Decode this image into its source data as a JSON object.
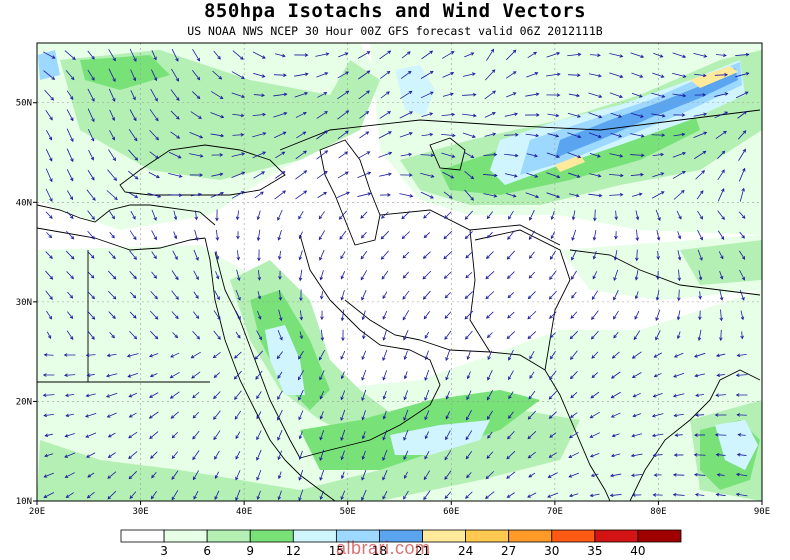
{
  "map": {
    "title": "850hpa Isotachs and Wind Vectors",
    "subtitle": "US NOAA NWS NCEP 30 Hour 00Z GFS forecast valid 06Z 2012111B",
    "lon_range": [
      20,
      90
    ],
    "lat_range": [
      10,
      56
    ],
    "lon_ticks": [
      "20E",
      "30E",
      "40E",
      "50E",
      "60E",
      "70E",
      "80E",
      "90E"
    ],
    "lat_ticks": [
      "10N",
      "20N",
      "30N",
      "40N",
      "50N"
    ],
    "watermark": "albrari.com"
  },
  "legend": {
    "colors": [
      "#ffffff",
      "#e6ffe6",
      "#b4f0b4",
      "#78e178",
      "#d0f5ff",
      "#9cd8ff",
      "#5aa4f0",
      "#ffea9c",
      "#ffc850",
      "#ff9a28",
      "#ff5a14",
      "#d21414",
      "#a00000"
    ],
    "labels": [
      "3",
      "6",
      "9",
      "12",
      "15",
      "18",
      "21",
      "24",
      "27",
      "30",
      "35",
      "40"
    ]
  },
  "icons": {
    "arrows": "wind-vector-arrow-icon"
  },
  "colors": {
    "coastline": "#000000",
    "gridline": "#9a9a9a",
    "vector": "#1a1aa0"
  }
}
